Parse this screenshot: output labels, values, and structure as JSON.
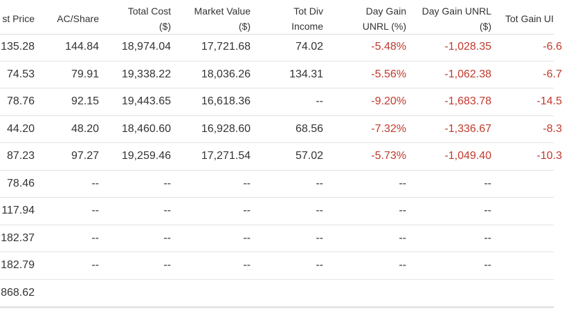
{
  "colors": {
    "negative": "#c0392b",
    "text": "#333333",
    "divider": "#e3e3e3"
  },
  "header": {
    "last_price": [
      "st Price"
    ],
    "ac_share": [
      "AC/Share"
    ],
    "total_cost": [
      "Total Cost",
      "($)"
    ],
    "market_value": [
      "Market Value",
      "($)"
    ],
    "tot_div_income": [
      "Tot Div",
      "Income"
    ],
    "day_gain_unrl_pct": [
      "Day Gain",
      "UNRL (%)"
    ],
    "day_gain_unrl": [
      "Day Gain UNRL",
      "($)"
    ],
    "tot_gain_unrl": [
      "Tot Gain UI"
    ]
  },
  "rows": [
    {
      "last_price": "135.28",
      "ac_share": "144.84",
      "total_cost": "18,974.04",
      "market_value": "17,721.68",
      "tot_div_income": "74.02",
      "day_gain_pct": "-5.48%",
      "day_gain": "-1,028.35",
      "tot_gain": "-6.6"
    },
    {
      "last_price": "74.53",
      "ac_share": "79.91",
      "total_cost": "19,338.22",
      "market_value": "18,036.26",
      "tot_div_income": "134.31",
      "day_gain_pct": "-5.56%",
      "day_gain": "-1,062.38",
      "tot_gain": "-6.7"
    },
    {
      "last_price": "78.76",
      "ac_share": "92.15",
      "total_cost": "19,443.65",
      "market_value": "16,618.36",
      "tot_div_income": "--",
      "day_gain_pct": "-9.20%",
      "day_gain": "-1,683.78",
      "tot_gain": "-14.5"
    },
    {
      "last_price": "44.20",
      "ac_share": "48.20",
      "total_cost": "18,460.60",
      "market_value": "16,928.60",
      "tot_div_income": "68.56",
      "day_gain_pct": "-7.32%",
      "day_gain": "-1,336.67",
      "tot_gain": "-8.3"
    },
    {
      "last_price": "87.23",
      "ac_share": "97.27",
      "total_cost": "19,259.46",
      "market_value": "17,271.54",
      "tot_div_income": "57.02",
      "day_gain_pct": "-5.73%",
      "day_gain": "-1,049.40",
      "tot_gain": "-10.3"
    },
    {
      "last_price": "78.46",
      "ac_share": "--",
      "total_cost": "--",
      "market_value": "--",
      "tot_div_income": "--",
      "day_gain_pct": "--",
      "day_gain": "--",
      "tot_gain": ""
    },
    {
      "last_price": "117.94",
      "ac_share": "--",
      "total_cost": "--",
      "market_value": "--",
      "tot_div_income": "--",
      "day_gain_pct": "--",
      "day_gain": "--",
      "tot_gain": ""
    },
    {
      "last_price": "182.37",
      "ac_share": "--",
      "total_cost": "--",
      "market_value": "--",
      "tot_div_income": "--",
      "day_gain_pct": "--",
      "day_gain": "--",
      "tot_gain": ""
    },
    {
      "last_price": "182.79",
      "ac_share": "--",
      "total_cost": "--",
      "market_value": "--",
      "tot_div_income": "--",
      "day_gain_pct": "--",
      "day_gain": "--",
      "tot_gain": ""
    },
    {
      "last_price": "868.62",
      "ac_share": "",
      "total_cost": "",
      "market_value": "",
      "tot_div_income": "",
      "day_gain_pct": "",
      "day_gain": "",
      "tot_gain": ""
    }
  ]
}
